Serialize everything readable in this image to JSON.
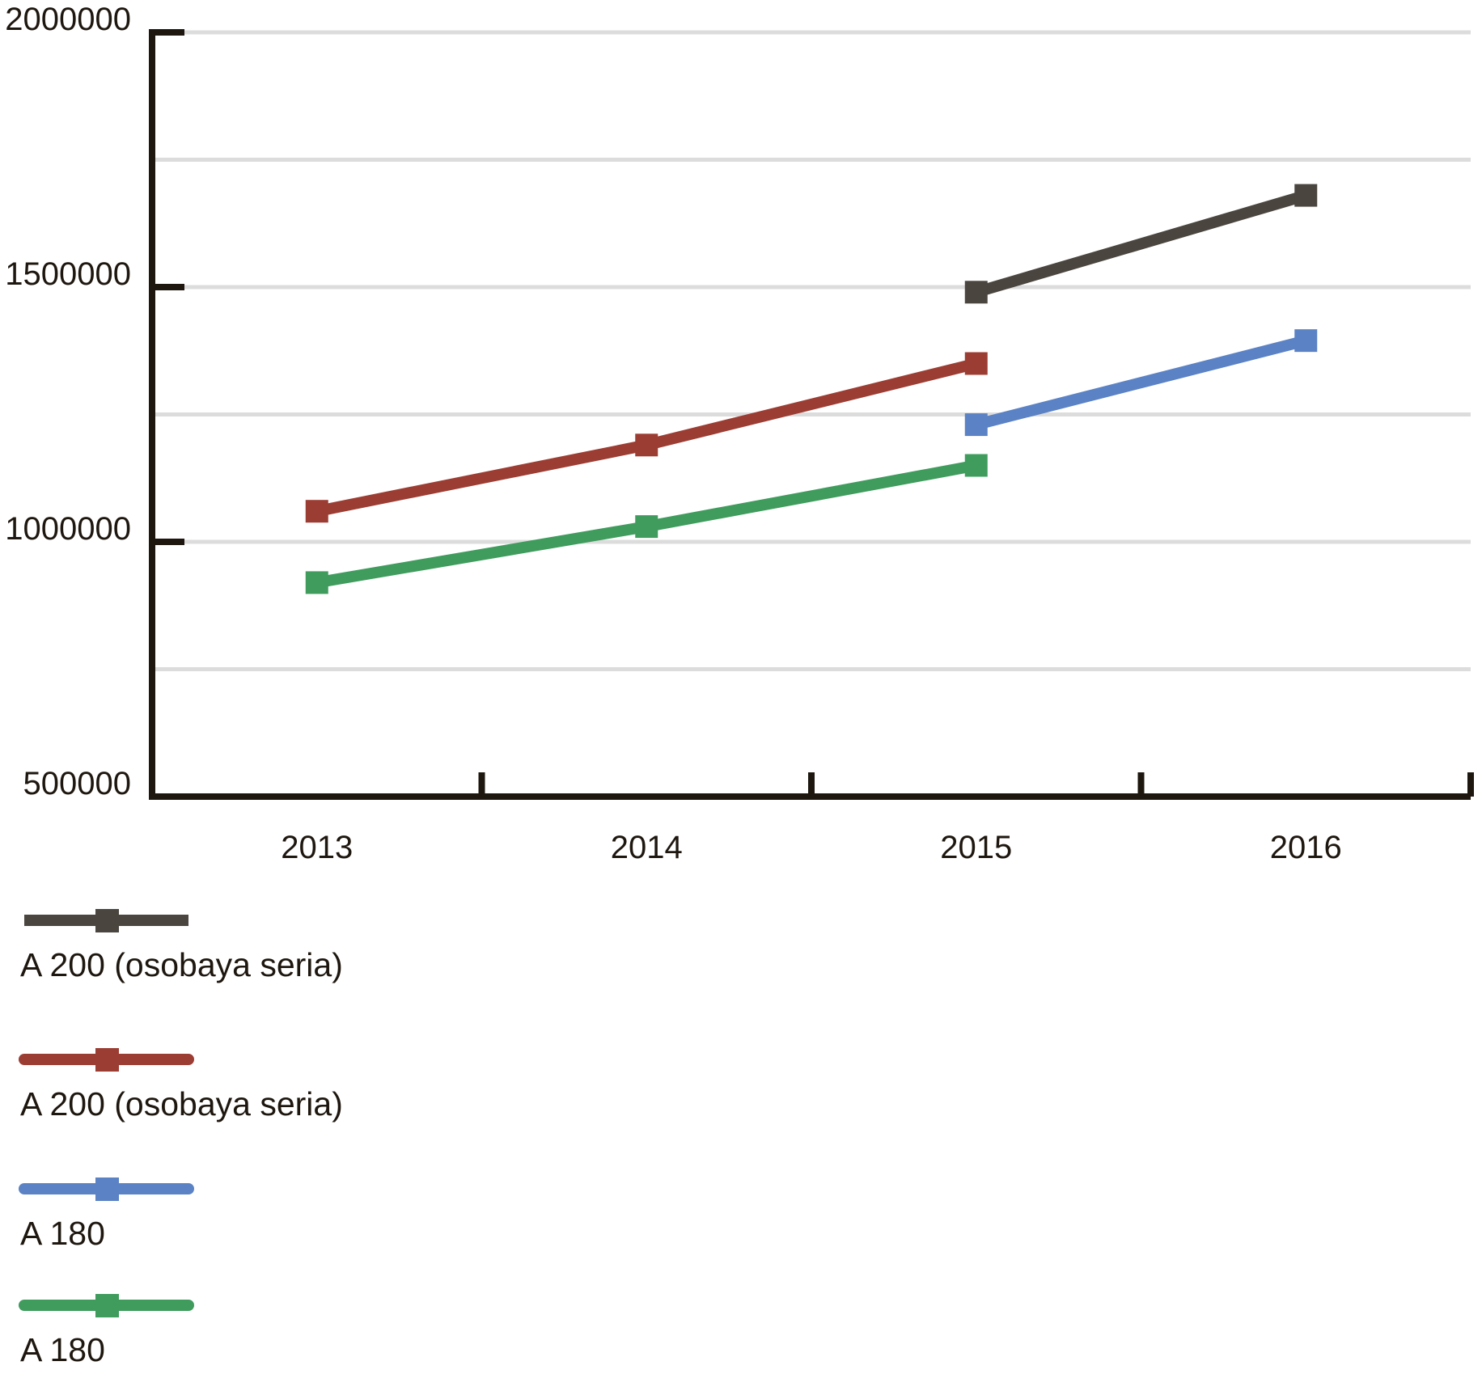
{
  "chart_data": {
    "type": "line",
    "title": "",
    "xlabel": "",
    "ylabel": "",
    "categories": [
      "2013",
      "2014",
      "2015",
      "2016"
    ],
    "series": [
      {
        "name": "A 200 (osobaya seria)",
        "color": "#4a453f",
        "values": [
          null,
          null,
          1490000,
          1680000
        ]
      },
      {
        "name": "A 200 (osobaya seria)",
        "color": "#9c3d33",
        "values": [
          1060000,
          1190000,
          1350000,
          null
        ]
      },
      {
        "name": "A 180",
        "color": "#5b82c4",
        "values": [
          null,
          null,
          1230000,
          1395000
        ]
      },
      {
        "name": "A 180",
        "color": "#3f9c5d",
        "values": [
          920000,
          1030000,
          1150000,
          null
        ]
      }
    ],
    "ylim": [
      500000,
      2000000
    ],
    "y_tick_labels": [
      "500000",
      "1000000",
      "1500000",
      "2000000"
    ],
    "y_tick_step": 500000,
    "gridline_step": 250000,
    "grid": true,
    "marker": "square",
    "legend_position": "bottom-left"
  },
  "colors": {
    "axis": "#1e170f",
    "text": "#1e170f",
    "gridline": "#dcdcdc",
    "background": "#ffffff"
  }
}
